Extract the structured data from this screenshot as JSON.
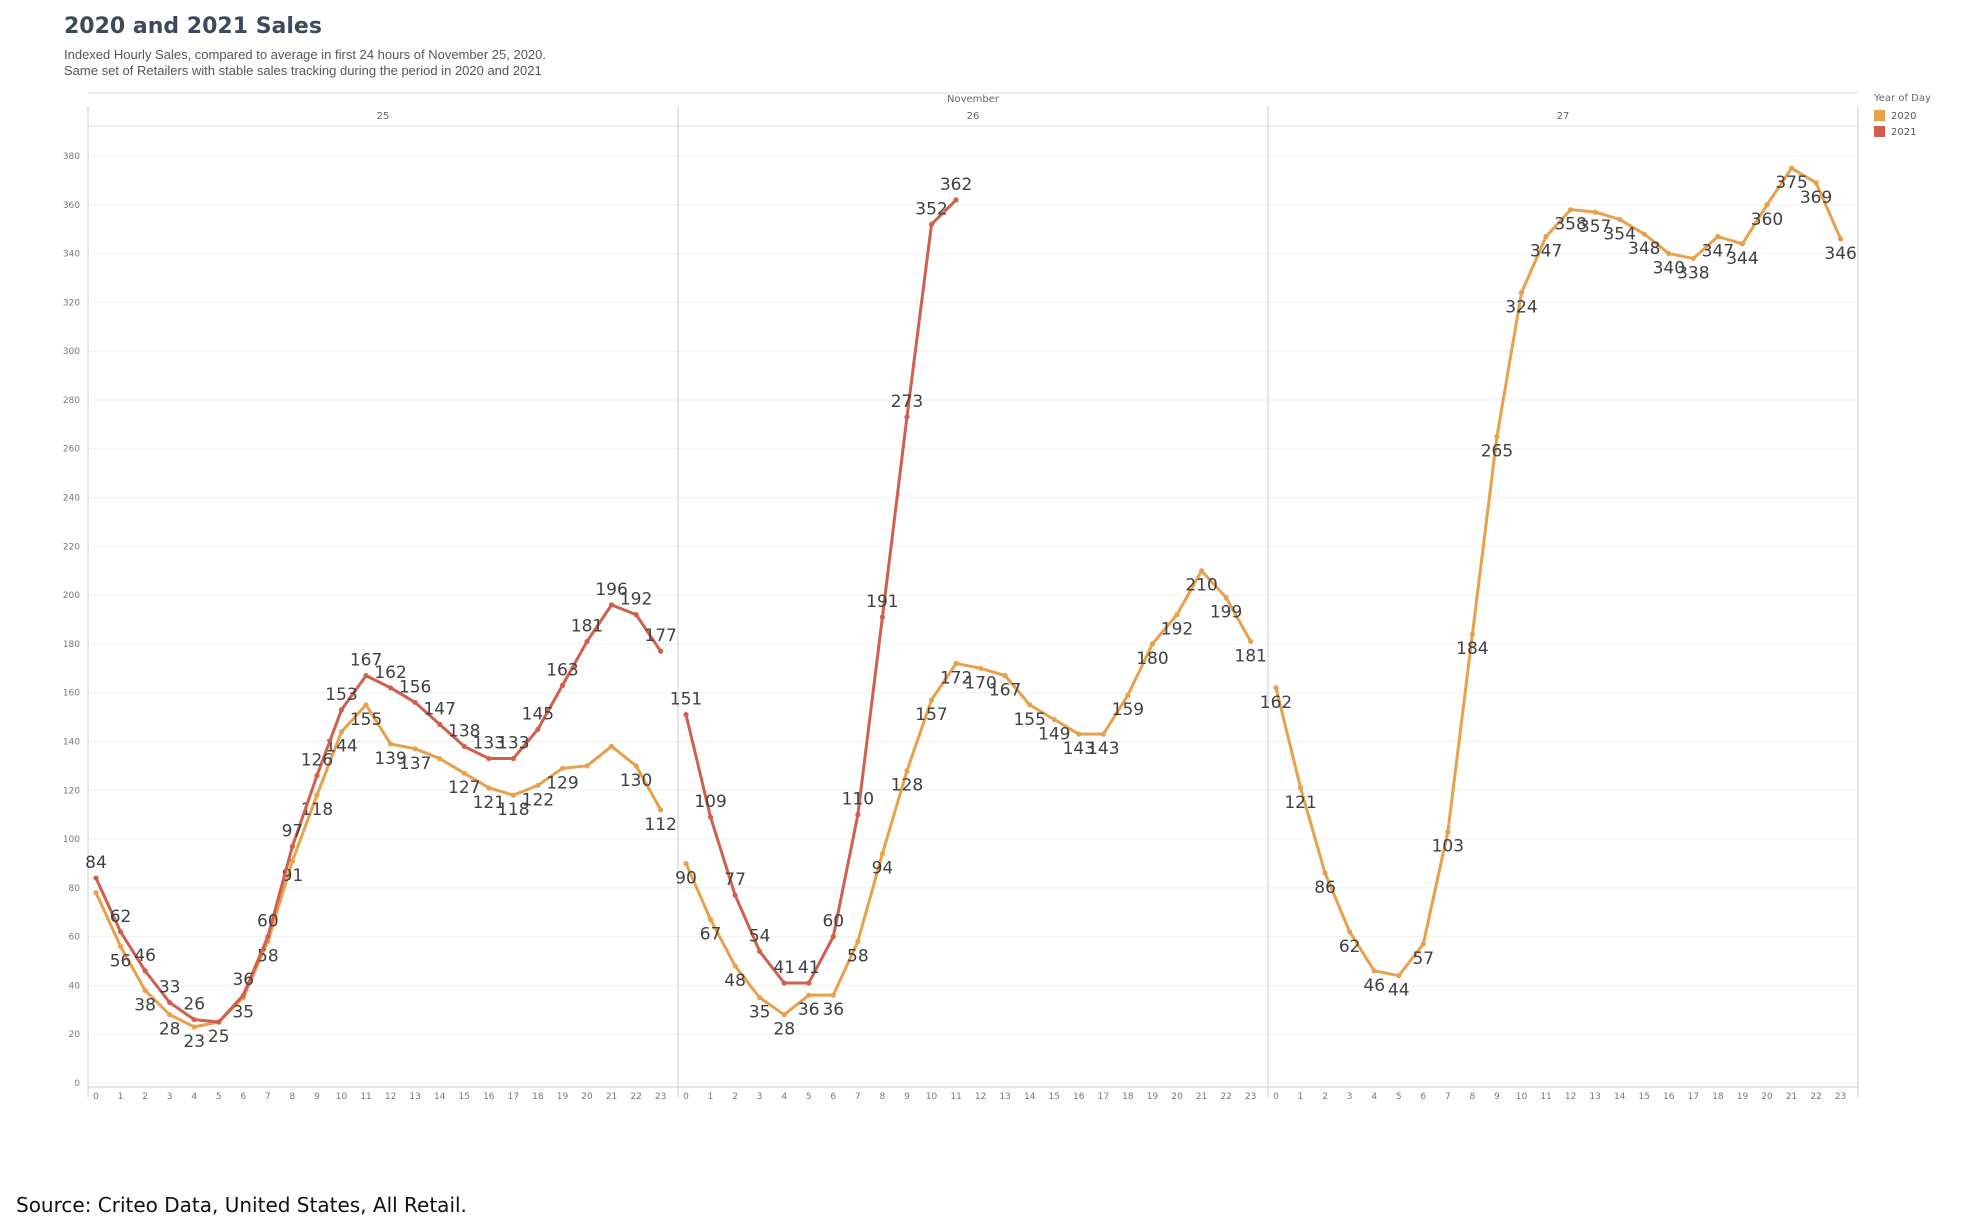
{
  "title": "2020 and 2021 Sales",
  "subtitle": "Indexed Hourly Sales, compared to average in first 24 hours of November 25, 2020.\nSame set of Retailers with stable sales tracking during the period in 2020 and 2021",
  "source": "Source: Criteo Data, United States, All Retail.",
  "chart_data": {
    "type": "line",
    "title": "2020 and 2021 Sales",
    "month_label": "November",
    "days": [
      "25",
      "26",
      "27"
    ],
    "hours": [
      "0",
      "1",
      "2",
      "3",
      "4",
      "5",
      "6",
      "7",
      "8",
      "9",
      "10",
      "11",
      "12",
      "13",
      "14",
      "15",
      "16",
      "17",
      "18",
      "19",
      "20",
      "21",
      "22",
      "23"
    ],
    "ylim": [
      0,
      390
    ],
    "yticks": [
      0,
      20,
      40,
      60,
      80,
      100,
      120,
      140,
      160,
      180,
      200,
      220,
      240,
      260,
      280,
      300,
      320,
      340,
      360,
      380
    ],
    "grid": true,
    "legend": {
      "title": "Year of Day",
      "position": "top-right",
      "items": [
        {
          "label": "2020",
          "color": "#e8a04a"
        },
        {
          "label": "2021",
          "color": "#d0604d"
        }
      ]
    },
    "series": [
      {
        "name": "2020",
        "color": "#e8a04a",
        "values": [
          [
            78,
            56,
            38,
            28,
            23,
            25,
            35,
            58,
            91,
            118,
            144,
            155,
            139,
            137,
            133,
            127,
            121,
            118,
            122,
            129,
            130,
            138,
            130,
            112
          ],
          [
            90,
            67,
            48,
            35,
            28,
            36,
            36,
            58,
            94,
            128,
            157,
            172,
            170,
            167,
            155,
            149,
            143,
            143,
            159,
            180,
            192,
            210,
            199,
            181
          ],
          [
            162,
            121,
            86,
            62,
            46,
            44,
            57,
            103,
            184,
            265,
            324,
            347,
            358,
            357,
            354,
            348,
            340,
            338,
            347,
            344,
            360,
            375,
            369,
            346
          ]
        ],
        "labels": [
          [
            "",
            "56",
            "38",
            "28",
            "23",
            "25",
            "35",
            "58",
            "91",
            "118",
            "144",
            "155",
            "139",
            "137",
            "",
            "127",
            "121",
            "118",
            "122",
            "129",
            "",
            "",
            "130",
            "112"
          ],
          [
            "90",
            "67",
            "48",
            "35",
            "28",
            "36",
            "36",
            "58",
            "94",
            "128",
            "157",
            "172",
            "170",
            "167",
            "155",
            "149",
            "143",
            "143",
            "159",
            "180",
            "192",
            "210",
            "199",
            "181"
          ],
          [
            "162",
            "121",
            "86",
            "62",
            "46",
            "44",
            "57",
            "103",
            "184",
            "265",
            "324",
            "347",
            "358",
            "357",
            "354",
            "348",
            "340",
            "338",
            "347",
            "344",
            "360",
            "375",
            "369",
            "346"
          ]
        ]
      },
      {
        "name": "2021",
        "color": "#d0604d",
        "values": [
          [
            84,
            62,
            46,
            33,
            26,
            25,
            36,
            60,
            97,
            126,
            153,
            167,
            162,
            156,
            147,
            138,
            133,
            133,
            145,
            163,
            181,
            196,
            192,
            177
          ],
          [
            151,
            109,
            77,
            54,
            41,
            41,
            60,
            110,
            191,
            273,
            352,
            362,
            null,
            null,
            null,
            null,
            null,
            null,
            null,
            null,
            null,
            null,
            null,
            null
          ],
          [
            null,
            null,
            null,
            null,
            null,
            null,
            null,
            null,
            null,
            null,
            null,
            null,
            null,
            null,
            null,
            null,
            null,
            null,
            null,
            null,
            null,
            null,
            null,
            null
          ]
        ],
        "labels": [
          [
            "84",
            "62",
            "46",
            "33",
            "26",
            "",
            "36",
            "60",
            "97",
            "126",
            "153",
            "167",
            "162",
            "156",
            "147",
            "138",
            "133",
            "133",
            "145",
            "163",
            "181",
            "196",
            "192",
            "177"
          ],
          [
            "151",
            "109",
            "77",
            "54",
            "41",
            "41",
            "60",
            "110",
            "191",
            "273",
            "352",
            "362",
            "",
            "",
            "",
            "",
            "",
            "",
            "",
            "",
            "",
            "",
            "",
            ""
          ],
          [
            "",
            "",
            "",
            "",
            "",
            "",
            "",
            "",
            "",
            "",
            "",
            "",
            "",
            "",
            "",
            "",
            "",
            "",
            "",
            "",
            "",
            "",
            "",
            ""
          ]
        ]
      }
    ]
  }
}
